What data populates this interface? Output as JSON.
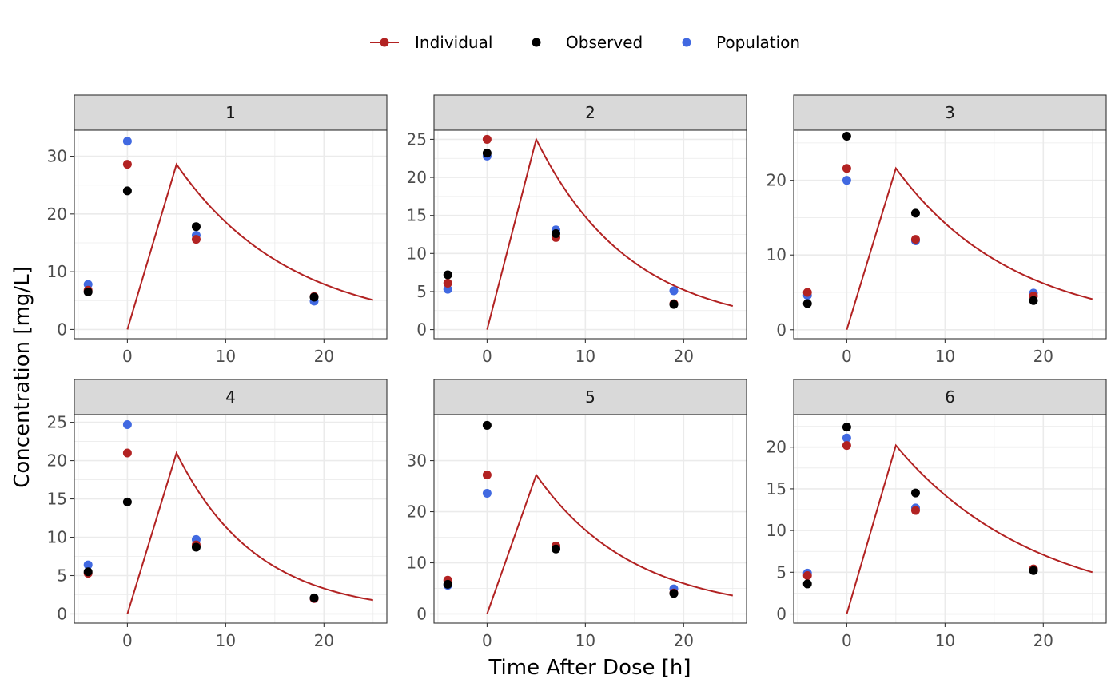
{
  "chart_data": {
    "type": "scatter",
    "facet_by": "ID",
    "xlabel": "Time After Dose [h]",
    "ylabel": "Concentration [mg/L]",
    "grid": true,
    "legend": {
      "position": "top",
      "entries": [
        {
          "name": "Individual",
          "kind": "line+point",
          "color": "#B22222"
        },
        {
          "name": "Observed",
          "kind": "point",
          "color": "#000000"
        },
        {
          "name": "Population",
          "kind": "point",
          "color": "#4169E1"
        }
      ]
    },
    "colors": {
      "Individual": "#B22222",
      "Observed": "#000000",
      "Population": "#4169E1"
    },
    "xlim": [
      -5.4,
      26.4
    ],
    "x_ticks": [
      0,
      10,
      20
    ],
    "panels": [
      {
        "label": "1",
        "ylim": [
          -1.6,
          34.5
        ],
        "y_ticks": [
          0,
          10,
          20,
          30
        ],
        "points": {
          "x": [
            -4,
            0,
            7,
            19
          ],
          "Individual": [
            6.8,
            28.6,
            15.6,
            5.7
          ],
          "Observed": [
            6.5,
            24.0,
            17.8,
            5.6
          ],
          "Population": [
            7.8,
            32.6,
            16.3,
            4.9
          ]
        },
        "curve": {
          "peak_time": 5,
          "peak_value": 28.6,
          "end_time": 25,
          "end_value": 5.1
        }
      },
      {
        "label": "2",
        "ylim": [
          -1.2,
          26.2
        ],
        "y_ticks": [
          0,
          5,
          10,
          15,
          20,
          25
        ],
        "points": {
          "x": [
            -4,
            0,
            7,
            19
          ],
          "Individual": [
            6.1,
            25.0,
            12.1,
            3.4
          ],
          "Observed": [
            7.2,
            23.2,
            12.6,
            3.3
          ],
          "Population": [
            5.3,
            22.8,
            13.1,
            5.1
          ]
        },
        "curve": {
          "peak_time": 5,
          "peak_value": 25.0,
          "end_time": 25,
          "end_value": 3.1
        }
      },
      {
        "label": "3",
        "ylim": [
          -1.2,
          26.7
        ],
        "y_ticks": [
          0,
          10,
          20
        ],
        "points": {
          "x": [
            -4,
            0,
            7,
            19
          ],
          "Individual": [
            5.0,
            21.6,
            12.1,
            4.5
          ],
          "Observed": [
            3.5,
            25.9,
            15.6,
            3.9
          ],
          "Population": [
            4.6,
            20.0,
            11.9,
            4.9
          ]
        },
        "curve": {
          "peak_time": 5,
          "peak_value": 21.6,
          "end_time": 25,
          "end_value": 4.1
        }
      },
      {
        "label": "4",
        "ylim": [
          -1.2,
          26.0
        ],
        "y_ticks": [
          0,
          5,
          10,
          15,
          20,
          25
        ],
        "points": {
          "x": [
            -4,
            0,
            7,
            19
          ],
          "Individual": [
            5.3,
            21.0,
            9.0,
            2.0
          ],
          "Observed": [
            5.5,
            14.6,
            8.7,
            2.1
          ],
          "Population": [
            6.4,
            24.7,
            9.7,
            2.0
          ]
        },
        "curve": {
          "peak_time": 5,
          "peak_value": 21.0,
          "end_time": 25,
          "end_value": 1.8
        }
      },
      {
        "label": "5",
        "ylim": [
          -1.8,
          39.0
        ],
        "y_ticks": [
          0,
          10,
          20,
          30
        ],
        "points": {
          "x": [
            -4,
            0,
            7,
            19
          ],
          "Individual": [
            6.6,
            27.2,
            13.3,
            4.1
          ],
          "Observed": [
            5.8,
            36.9,
            12.7,
            4.0
          ],
          "Population": [
            5.6,
            23.6,
            13.0,
            4.9
          ]
        },
        "curve": {
          "peak_time": 5,
          "peak_value": 27.2,
          "end_time": 25,
          "end_value": 3.6
        }
      },
      {
        "label": "6",
        "ylim": [
          -1.1,
          23.9
        ],
        "y_ticks": [
          0,
          5,
          10,
          15,
          20
        ],
        "points": {
          "x": [
            -4,
            0,
            7,
            19
          ],
          "Individual": [
            4.6,
            20.2,
            12.4,
            5.4
          ],
          "Observed": [
            3.6,
            22.4,
            14.5,
            5.2
          ],
          "Population": [
            4.9,
            21.1,
            12.7,
            5.3
          ]
        },
        "curve": {
          "peak_time": 5,
          "peak_value": 20.2,
          "end_time": 25,
          "end_value": 5.0
        }
      }
    ]
  }
}
